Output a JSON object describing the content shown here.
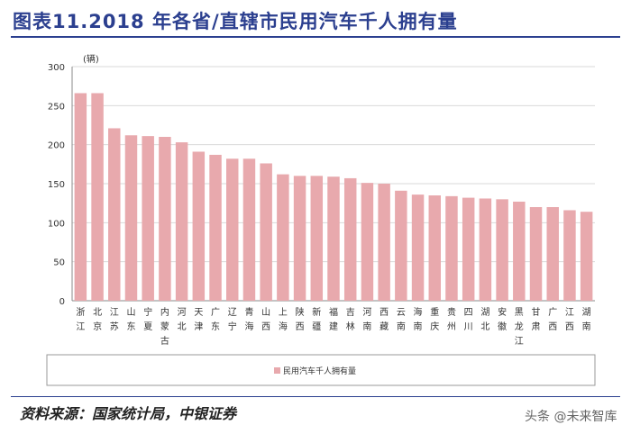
{
  "title": "图表11.2018 年各省/直辖市民用汽车千人拥有量",
  "source": "资料来源：国家统计局，中银证券",
  "watermark": "头条 @未来智库",
  "colors": {
    "bar": "#e8a9ad",
    "title": "#2b3f8f",
    "grid": "#d9d9d9"
  },
  "chart_data": {
    "type": "bar",
    "unit_label": "(辆)",
    "ylim": [
      0,
      300
    ],
    "yticks": [
      0,
      50,
      100,
      150,
      200,
      250,
      300
    ],
    "grid": true,
    "legend_position": "bottom",
    "categories": [
      "浙江",
      "北京",
      "江苏",
      "山东",
      "宁夏",
      "内蒙古",
      "河北",
      "天津",
      "广东",
      "辽宁",
      "青海",
      "山西",
      "上海",
      "陕西",
      "新疆",
      "福建",
      "吉林",
      "河南",
      "西藏",
      "云南",
      "海南",
      "重庆",
      "贵州",
      "四川",
      "湖北",
      "安徽",
      "黑龙江",
      "甘肃",
      "广西",
      "江西",
      "湖南"
    ],
    "series": [
      {
        "name": "民用汽车千人拥有量",
        "values": [
          266,
          266,
          221,
          212,
          211,
          210,
          203,
          191,
          187,
          182,
          182,
          176,
          162,
          160,
          160,
          159,
          157,
          151,
          150,
          141,
          136,
          135,
          134,
          132,
          131,
          130,
          127,
          120,
          120,
          116,
          114
        ]
      }
    ]
  }
}
